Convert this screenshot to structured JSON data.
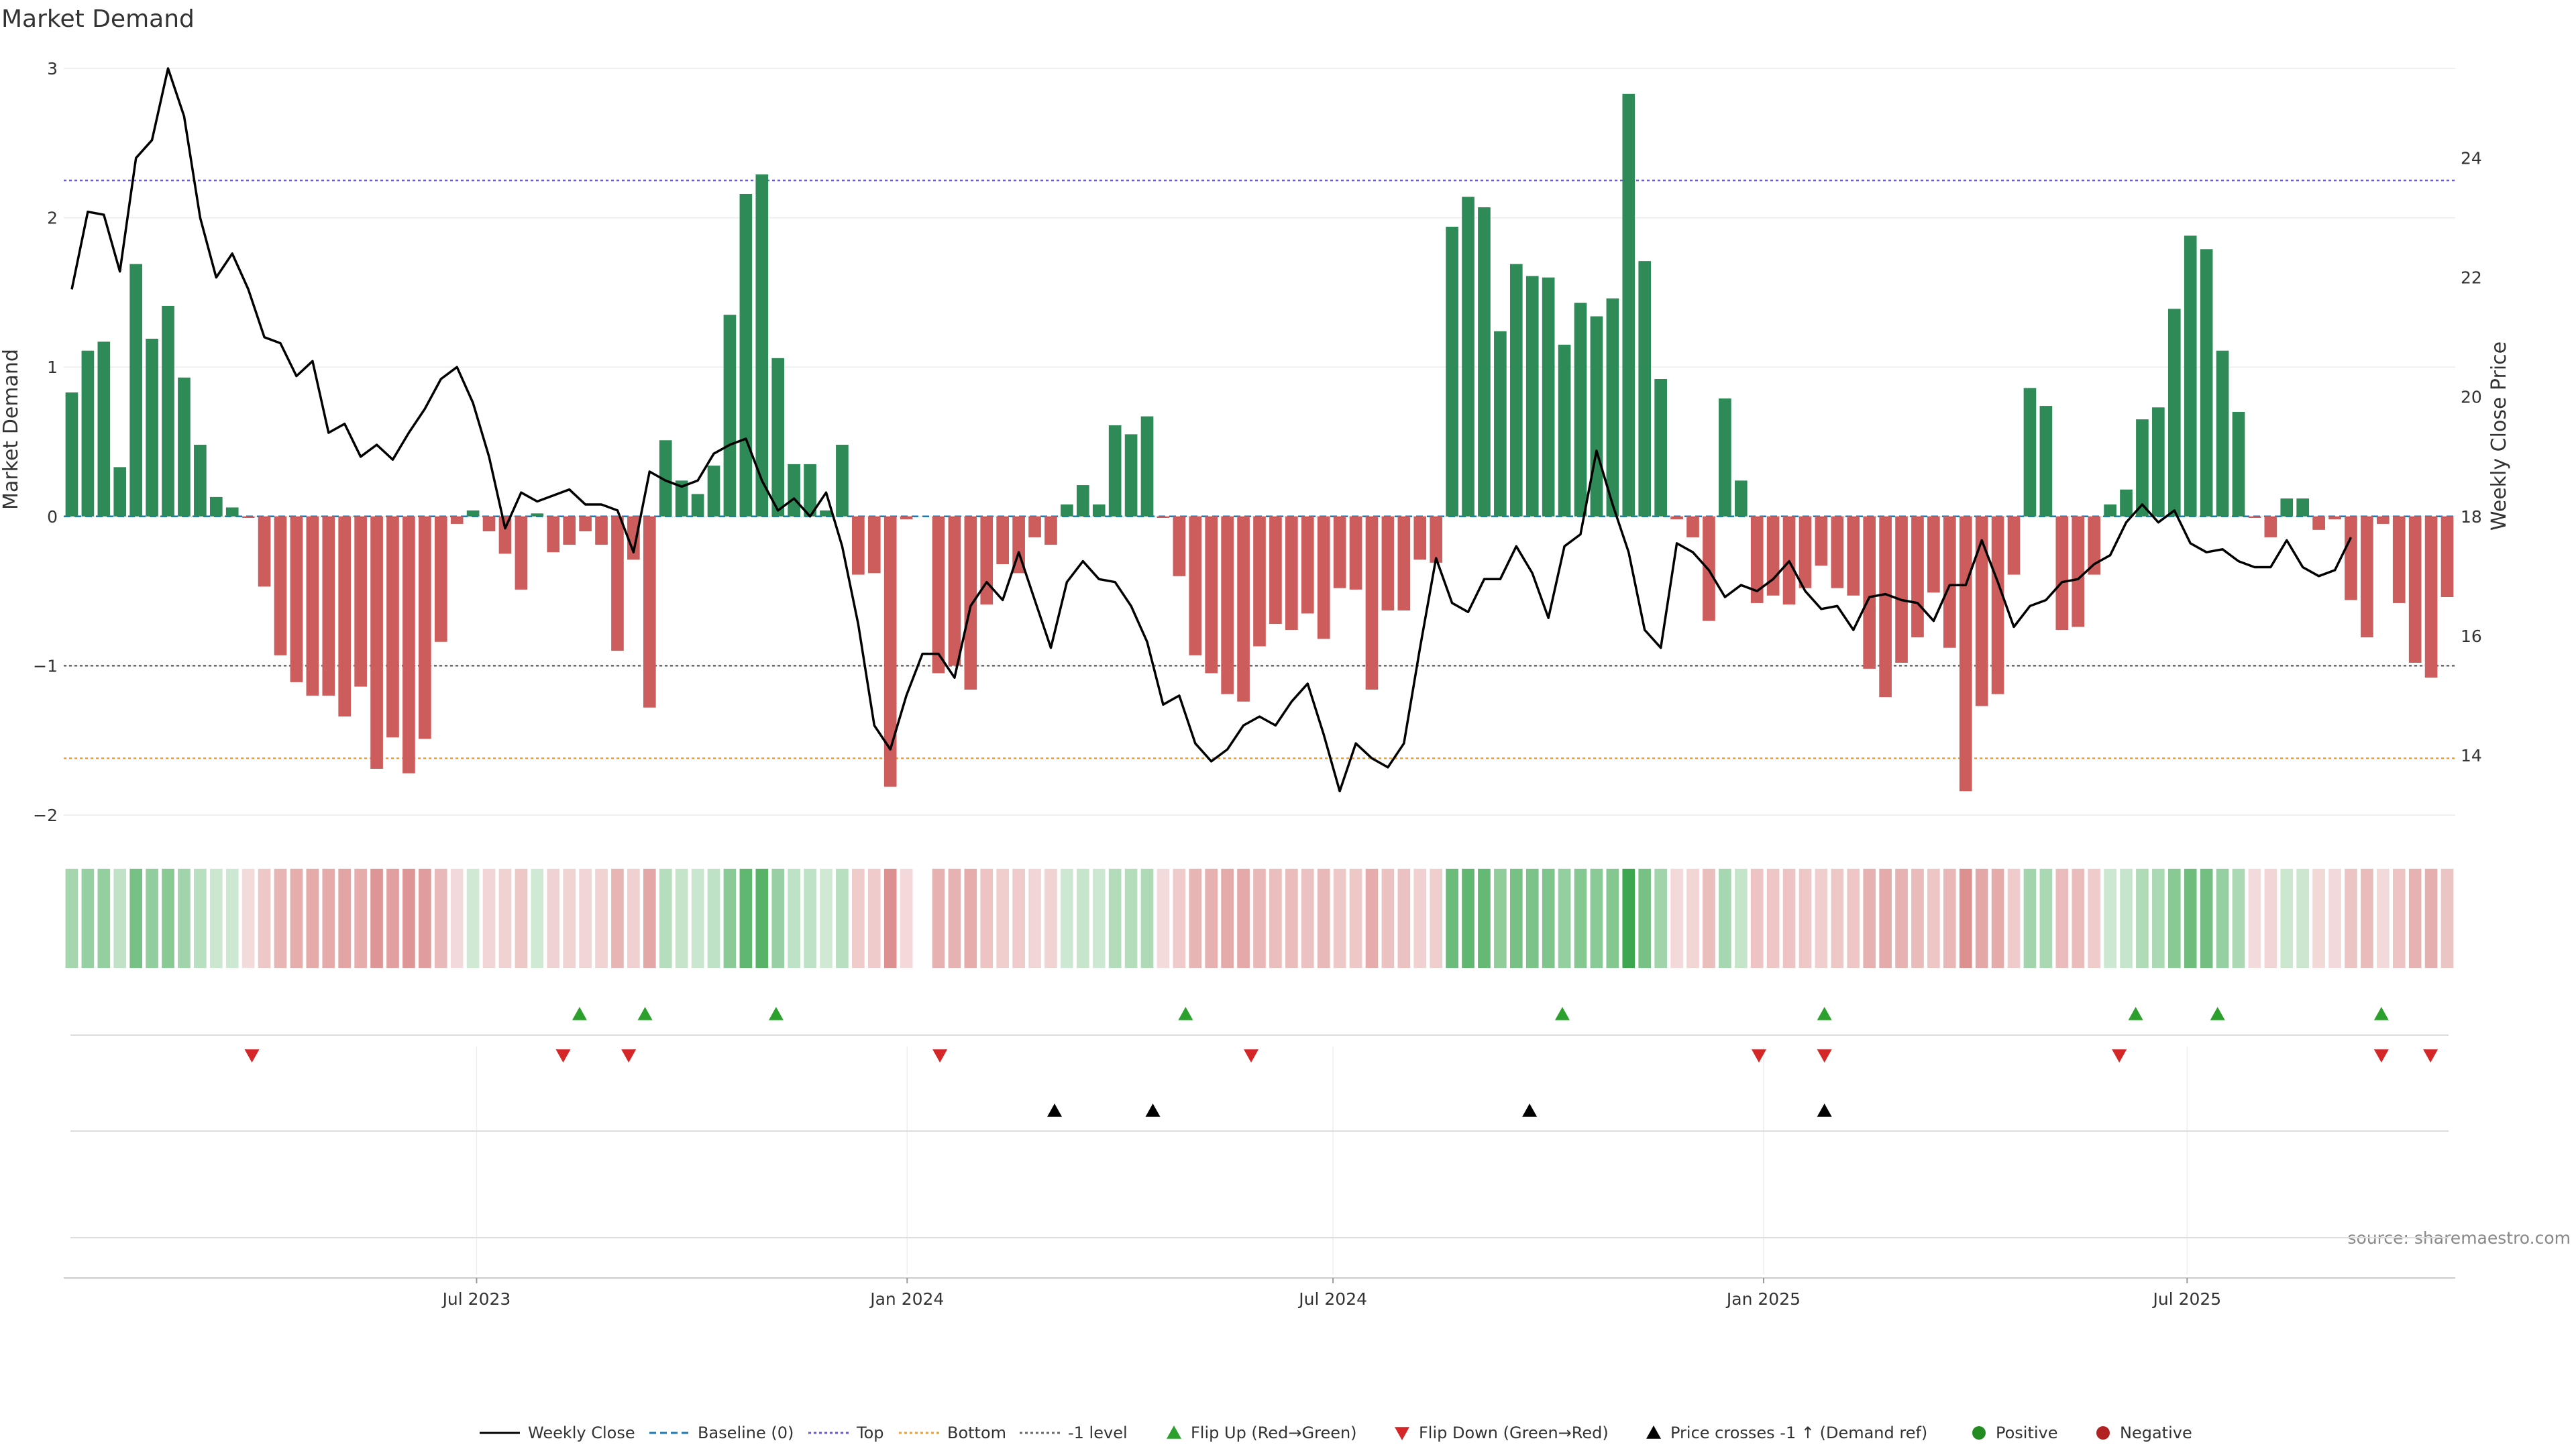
{
  "chart_data": {
    "type": "bar",
    "title": "Market Demand",
    "source": "source: sharemaestro.com",
    "ylabel_left": "Market Demand",
    "ylabel_right": "Weekly Close Price",
    "ylim_left": [
      -2,
      3
    ],
    "ylim_right": [
      13,
      25.5
    ],
    "yticks_left": [
      -2,
      -1,
      0,
      1,
      2,
      3
    ],
    "yticks_left_labels": [
      "−2",
      "−1",
      "0",
      "1",
      "2",
      "3"
    ],
    "yticks_right": [
      14,
      16,
      18,
      20,
      22,
      24
    ],
    "x_start": "2023-01-09",
    "x_end": "2025-10-27",
    "xticks": [
      {
        "date": "2023-07-01",
        "label": "Jul 2023"
      },
      {
        "date": "2024-01-01",
        "label": "Jan 2024"
      },
      {
        "date": "2024-07-01",
        "label": "Jul 2024"
      },
      {
        "date": "2025-01-01",
        "label": "Jan 2025"
      },
      {
        "date": "2025-07-01",
        "label": "Jul 2025"
      }
    ],
    "grid": true,
    "legend_placement": "bottom",
    "reference_lines": [
      {
        "name": "Baseline (0)",
        "value": 0,
        "color": "#1f77b4",
        "style": "dashed"
      },
      {
        "name": "Top",
        "value": 2.25,
        "color": "#6a5acd",
        "style": "dotted"
      },
      {
        "name": "Bottom",
        "value": -1.62,
        "color": "#f0a030",
        "style": "dotted"
      },
      {
        "name": "-1 level",
        "value": -1,
        "color": "#666666",
        "style": "dotted"
      }
    ],
    "colors": {
      "positive": "#2e8b57",
      "negative": "#cd5c5c",
      "price": "#000000",
      "flip_up": "#2ca02c",
      "flip_down": "#d62728",
      "price_cross": "#000000",
      "positive_dot": "#228b22",
      "negative_dot": "#b22222"
    },
    "demand": [
      0.83,
      1.11,
      1.17,
      0.33,
      1.69,
      1.19,
      1.41,
      0.93,
      0.48,
      0.13,
      0.06,
      -0.01,
      -0.47,
      -0.93,
      -1.11,
      -1.2,
      -1.2,
      -1.34,
      -1.14,
      -1.69,
      -1.48,
      -1.72,
      -1.49,
      -0.84,
      -0.05,
      0.04,
      -0.1,
      -0.25,
      -0.49,
      0.02,
      -0.24,
      -0.19,
      -0.1,
      -0.19,
      -0.9,
      -0.29,
      -1.28,
      0.51,
      0.24,
      0.15,
      0.34,
      1.35,
      2.16,
      2.29,
      1.06,
      0.35,
      0.35,
      0.04,
      0.48,
      -0.39,
      -0.38,
      -1.81,
      -0.02,
      null,
      -1.05,
      -1.0,
      -1.16,
      -0.59,
      -0.32,
      -0.38,
      -0.14,
      -0.19,
      0.08,
      0.21,
      0.08,
      0.61,
      0.55,
      0.67,
      -0.01,
      -0.4,
      -0.93,
      -1.05,
      -1.19,
      -1.24,
      -0.87,
      -0.72,
      -0.76,
      -0.65,
      -0.82,
      -0.48,
      -0.49,
      -1.16,
      -0.63,
      -0.63,
      -0.29,
      -0.31,
      1.94,
      2.14,
      2.07,
      1.24,
      1.69,
      1.61,
      1.6,
      1.15,
      1.43,
      1.34,
      1.46,
      2.83,
      1.71,
      0.92,
      -0.02,
      -0.14,
      -0.7,
      0.79,
      0.24,
      -0.58,
      -0.53,
      -0.59,
      -0.48,
      -0.33,
      -0.48,
      -0.53,
      -1.02,
      -1.21,
      -0.98,
      -0.81,
      -0.51,
      -0.88,
      -1.84,
      -1.27,
      -1.19,
      -0.39,
      0.86,
      0.74,
      -0.76,
      -0.74,
      -0.39,
      0.08,
      0.18,
      0.65,
      0.73,
      1.39,
      1.88,
      1.79,
      1.11,
      0.7,
      -0.01,
      -0.14,
      0.12,
      0.12,
      -0.09,
      -0.02,
      -0.56,
      -0.81,
      -0.05,
      -0.58,
      -0.98,
      -1.08,
      -0.54
    ],
    "weekly_close": [
      21.8,
      23.1,
      23.05,
      22.1,
      24.0,
      24.3,
      25.5,
      24.7,
      23.0,
      22.0,
      22.4,
      21.8,
      21.0,
      20.9,
      20.35,
      20.6,
      19.4,
      19.55,
      19.0,
      19.2,
      18.95,
      19.4,
      19.8,
      20.3,
      20.5,
      19.9,
      19.0,
      17.8,
      18.4,
      18.25,
      18.35,
      18.45,
      18.2,
      18.2,
      18.1,
      17.4,
      18.75,
      18.6,
      18.5,
      18.6,
      19.05,
      19.2,
      19.3,
      18.6,
      18.1,
      18.3,
      18.0,
      18.4,
      17.5,
      16.2,
      14.5,
      14.1,
      15.0,
      15.7,
      15.7,
      15.3,
      16.5,
      16.9,
      16.6,
      17.4,
      16.6,
      15.8,
      16.9,
      17.25,
      16.95,
      16.9,
      16.5,
      15.9,
      14.85,
      15.0,
      14.2,
      13.9,
      14.1,
      14.5,
      14.65,
      14.5,
      14.9,
      15.2,
      14.35,
      13.4,
      14.2,
      13.95,
      13.8,
      14.2,
      15.8,
      17.3,
      16.55,
      16.4,
      16.95,
      16.95,
      17.5,
      17.05,
      16.3,
      17.5,
      17.7,
      19.1,
      18.2,
      17.4,
      16.1,
      15.8,
      17.55,
      17.4,
      17.1,
      16.65,
      16.85,
      16.75,
      16.95,
      17.25,
      16.75,
      16.45,
      16.5,
      16.1,
      16.65,
      16.7,
      16.6,
      16.55,
      16.25,
      16.85,
      16.85,
      17.6,
      16.9,
      16.15,
      16.5,
      16.6,
      16.9,
      16.95,
      17.2,
      17.35,
      17.9,
      18.2,
      17.9,
      18.1,
      17.55,
      17.4,
      17.45,
      17.25,
      17.15,
      17.15,
      17.6,
      17.15,
      17.0,
      17.1,
      17.65
    ]
  },
  "legend": {
    "weekly_close": "Weekly Close",
    "baseline": "Baseline (0)",
    "top": "Top",
    "bottom": "Bottom",
    "minus1": "-1 level",
    "flip_up": "Flip Up (Red→Green)",
    "flip_down": "Flip Down (Green→Red)",
    "price_cross": "Price crosses -1 ↑ (Demand ref)",
    "positive": "Positive",
    "negative": "Negative"
  },
  "markers": {
    "flip_up_dates": [
      "2023-08-14",
      "2023-09-11",
      "2023-11-06",
      "2024-04-29",
      "2024-10-07",
      "2025-01-27",
      "2025-06-09",
      "2025-07-14",
      "2025-09-22"
    ],
    "flip_down_dates": [
      "2023-03-27",
      "2023-08-07",
      "2023-09-04",
      "2024-01-15",
      "2024-05-27",
      "2024-12-30",
      "2025-01-27",
      "2025-06-02",
      "2025-09-22",
      "2025-10-13"
    ],
    "price_cross_dates": [
      "2024-03-04",
      "2024-04-15",
      "2024-09-23",
      "2025-01-27"
    ]
  }
}
